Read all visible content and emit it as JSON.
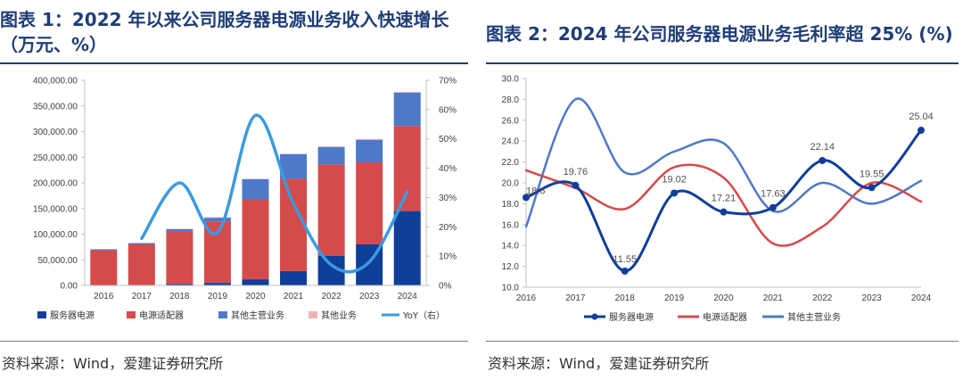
{
  "figure1": {
    "title_line1": "图表 1：2022 年以来公司服务器电源业务收入快速增长",
    "title_line2": "（万元、%）",
    "source": "资料来源：Wind，爱建证券研究所"
  },
  "figure2": {
    "title": "图表 2：2024 年公司服务器电源业务毛利率超 25% (%)",
    "source": "资料来源：Wind，爱建证券研究所"
  },
  "colors": {
    "title": "#1f3d78",
    "server": "#0f3e9b",
    "adapter": "#d54b4b",
    "other_main": "#4d79c8",
    "other": "#f2b1b1",
    "yoy": "#3a9ae0"
  },
  "chart_data": [
    {
      "type": "bar",
      "stacked": true,
      "title": "2022 年以来公司服务器电源业务收入快速增长",
      "categories": [
        "2016",
        "2017",
        "2018",
        "2019",
        "2020",
        "2021",
        "2022",
        "2023",
        "2024"
      ],
      "series": [
        {
          "name": "服务器电源",
          "values": [
            500,
            1000,
            3000,
            5000,
            12000,
            28000,
            58000,
            80000,
            145000
          ]
        },
        {
          "name": "电源适配器",
          "values": [
            68000,
            79000,
            103000,
            120000,
            155000,
            180000,
            178000,
            160000,
            166000
          ]
        },
        {
          "name": "其他主营业务",
          "values": [
            2000,
            2500,
            4000,
            7000,
            40000,
            48000,
            34000,
            44000,
            65000
          ]
        },
        {
          "name": "其他业务",
          "values": [
            500,
            500,
            500,
            1000,
            1000,
            1000,
            1000,
            1500,
            1500
          ]
        }
      ],
      "line": {
        "name": "YoY（右）",
        "x": [
          "2017",
          "2018",
          "2019",
          "2020",
          "2021",
          "2022",
          "2023",
          "2024"
        ],
        "values": [
          16,
          35,
          18,
          58,
          28,
          7,
          8,
          32
        ]
      },
      "y_ticks": [
        "400,000.00",
        "350,000.00",
        "300,000.00",
        "250,000.00",
        "200,000.00",
        "150,000.00",
        "100,000.00",
        "50,000.00",
        "0.00"
      ],
      "y2_ticks": [
        "70%",
        "60%",
        "50%",
        "40%",
        "30%",
        "20%",
        "10%",
        "0%"
      ],
      "ylim": [
        0,
        400000
      ],
      "y2lim": [
        0,
        70
      ],
      "legend": [
        "服务器电源",
        "电源适配器",
        "其他主营业务",
        "其他业务",
        "YoY（右）"
      ]
    },
    {
      "type": "line",
      "title": "2024 年公司服务器电源业务毛利率超 25%",
      "x": [
        "2016",
        "2017",
        "2018",
        "2019",
        "2020",
        "2021",
        "2022",
        "2023",
        "2024"
      ],
      "series": [
        {
          "name": "服务器电源",
          "values": [
            18.6,
            19.76,
            11.55,
            19.02,
            17.21,
            17.63,
            22.14,
            19.55,
            25.04
          ],
          "labels": [
            "18.6",
            "19.76",
            "11.55",
            "19.02",
            "17.21",
            "17.63",
            "22.14",
            "19.55",
            "25.04"
          ]
        },
        {
          "name": "电源适配器",
          "values": [
            21.2,
            19.5,
            17.5,
            21.5,
            20.5,
            14.2,
            15.8,
            20.0,
            18.2
          ]
        },
        {
          "name": "其他主营业务",
          "values": [
            15.8,
            28.0,
            21.0,
            23.0,
            23.8,
            17.3,
            20.0,
            18.0,
            20.2
          ]
        }
      ],
      "y_ticks": [
        "30.0",
        "28.0",
        "26.0",
        "24.0",
        "22.0",
        "20.0",
        "18.0",
        "16.0",
        "14.0",
        "12.0",
        "10.0"
      ],
      "ylim": [
        10,
        30
      ],
      "legend": [
        "服务器电源",
        "电源适配器",
        "其他主营业务"
      ]
    }
  ]
}
